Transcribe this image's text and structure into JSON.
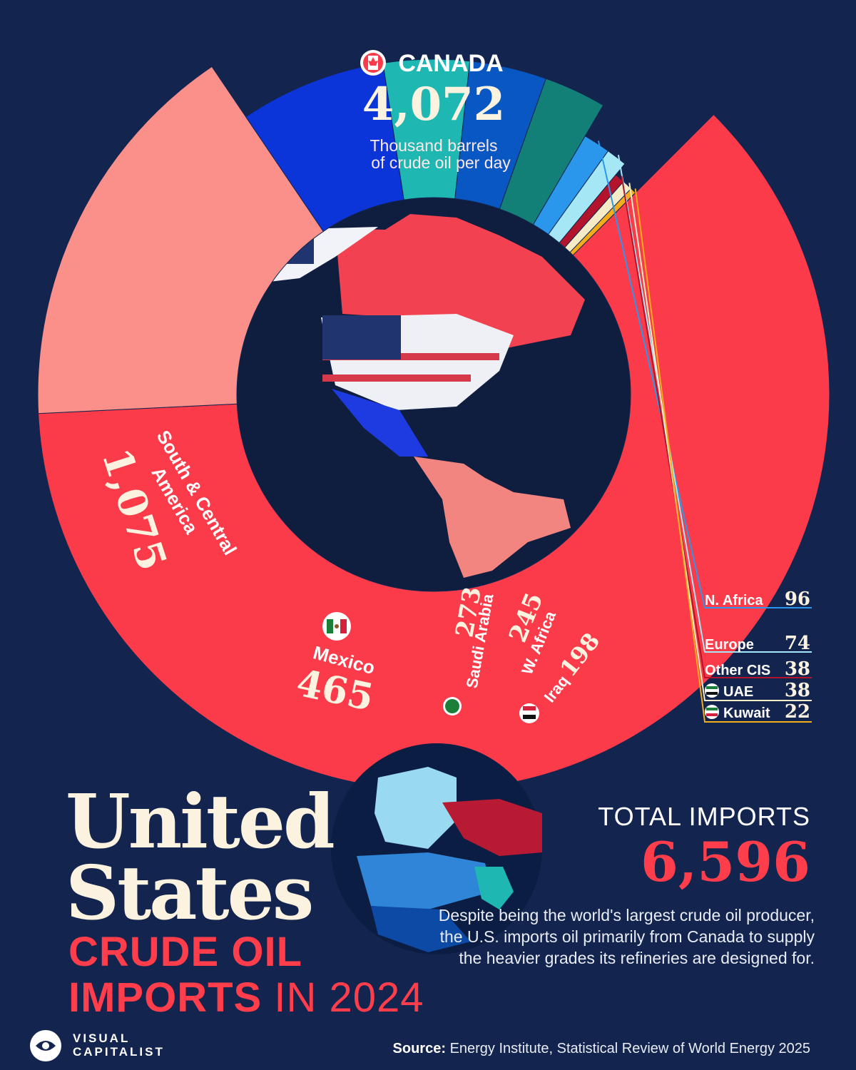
{
  "chart_data": {
    "type": "pie",
    "title": "United States",
    "subtitle_a": "CRUDE OIL",
    "subtitle_b_bold": "IMPORTS",
    "subtitle_b_rest": "IN 2024",
    "unit_note": [
      "Thousand barrels",
      "of crude oil per day"
    ],
    "slices": [
      {
        "label": "CANADA",
        "value": 4072,
        "value_text": "4,072",
        "color": "#fb3b49"
      },
      {
        "label_lines": [
          "South & Central",
          "America"
        ],
        "value": 1075,
        "value_text": "1,075",
        "color": "#fb8f8a"
      },
      {
        "label": "Mexico",
        "value": 465,
        "value_text": "465",
        "color": "#0b35d8"
      },
      {
        "label": "Saudi Arabia",
        "value": 273,
        "value_text": "273",
        "color": "#1eb7b2"
      },
      {
        "label": "W. Africa",
        "value": 245,
        "value_text": "245",
        "color": "#0857c2"
      },
      {
        "label": "Iraq",
        "value": 198,
        "value_text": "198",
        "color": "#138078"
      },
      {
        "label": "N. Africa",
        "value": 96,
        "value_text": "96",
        "color": "#2a97ec"
      },
      {
        "label": "Europe",
        "value": 74,
        "value_text": "74",
        "color": "#a5e7f4"
      },
      {
        "label": "Other CIS",
        "value": 38,
        "value_text": "38",
        "color": "#b3142c"
      },
      {
        "label": "UAE",
        "value": 38,
        "value_text": "38",
        "color": "#f5ebc6"
      },
      {
        "label": "Kuwait",
        "value": 22,
        "value_text": "22",
        "color": "#f2ac1c"
      }
    ],
    "total_label": "TOTAL IMPORTS",
    "total_value": "6,596"
  },
  "note": "Despite being the world's largest crude oil producer, the U.S. imports oil primarily from Canada to supply the heavier grades its refineries are designed for.",
  "source_label": "Source:",
  "source_text": "Energy Institute, Statistical Review of World Energy 2025",
  "brand": {
    "line1": "VISUAL",
    "line2": "CAPITALIST"
  },
  "colors": {
    "background": "#13254f",
    "accent": "#ff3d4b",
    "title": "#fbf3df"
  }
}
